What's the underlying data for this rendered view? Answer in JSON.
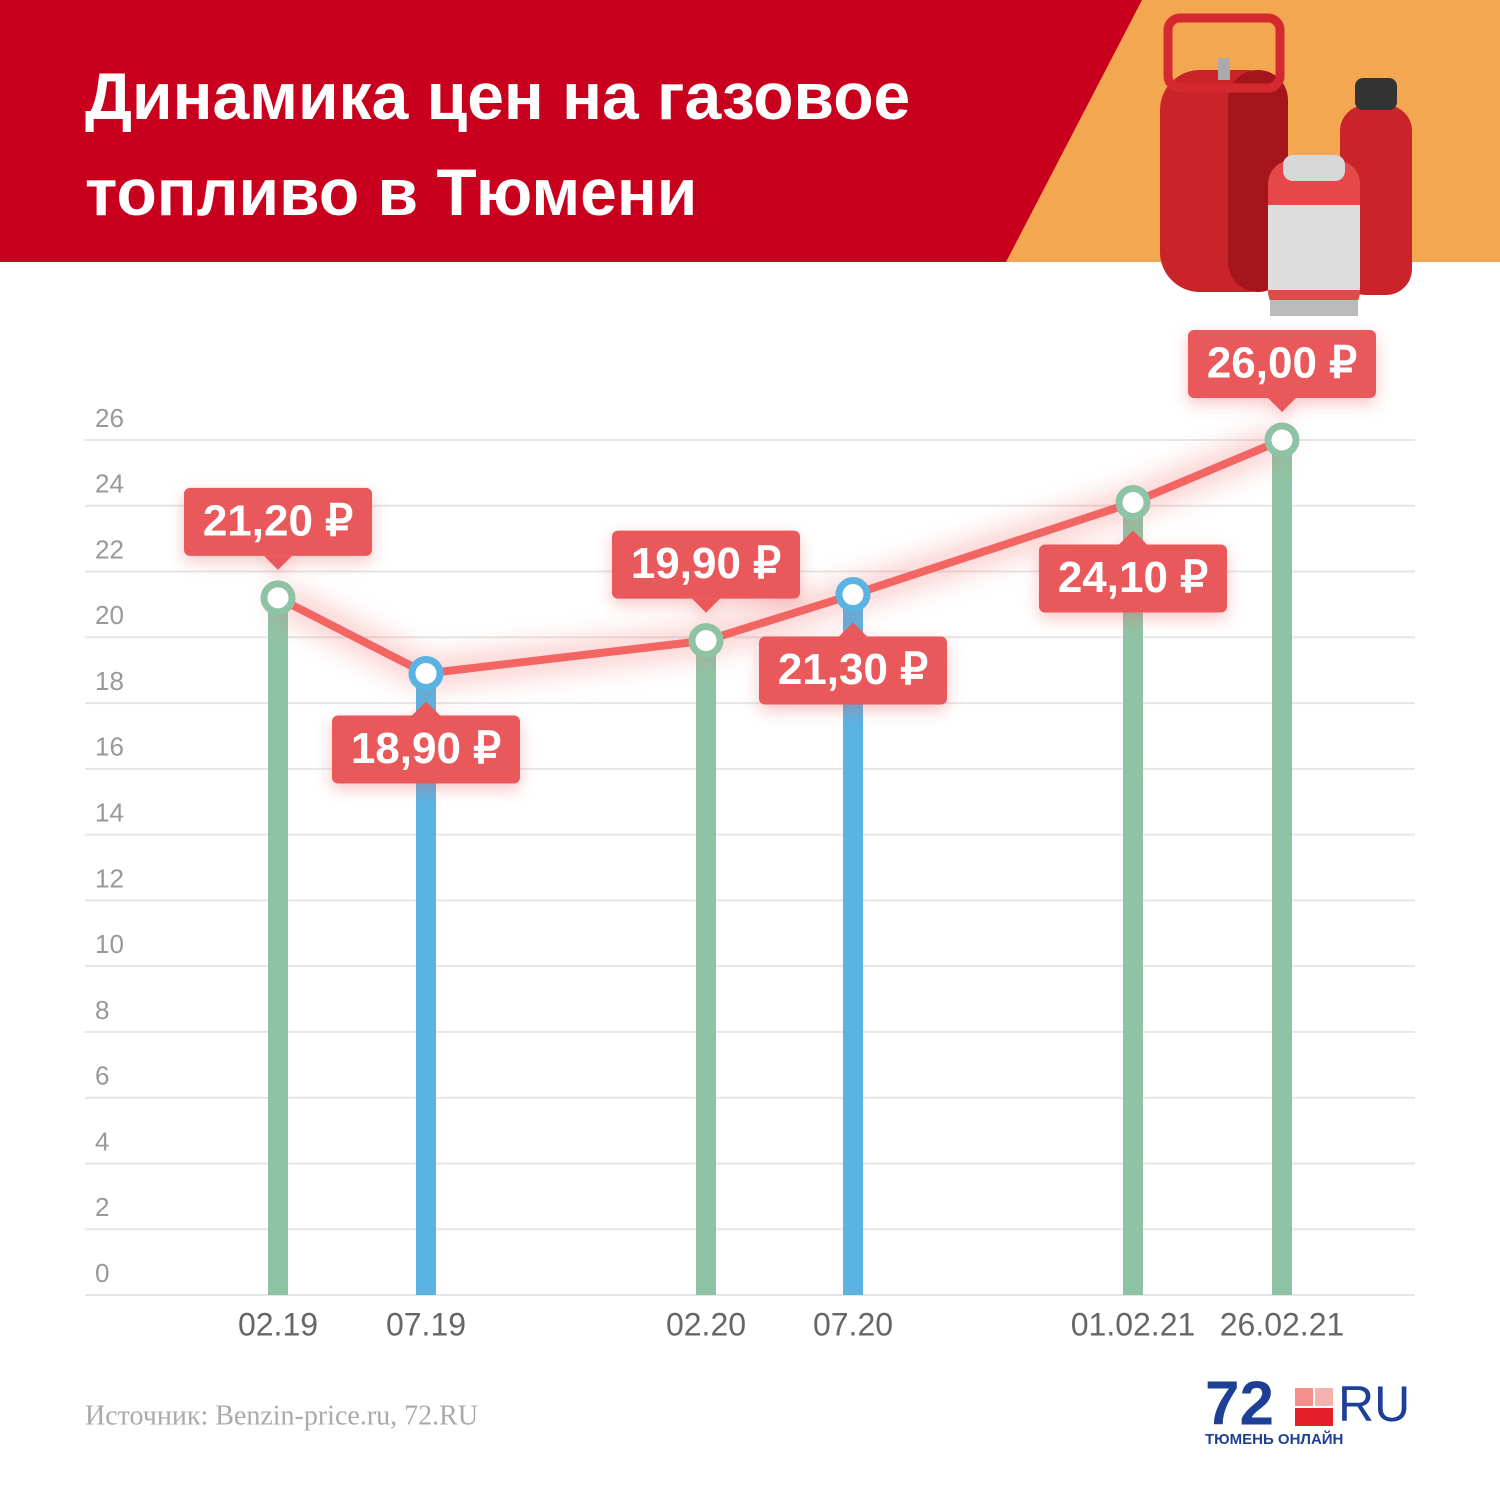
{
  "chart_data": {
    "type": "bar",
    "title": "Динамика цен на газовое топливо в Тюмени",
    "categories": [
      "02.19",
      "07.19",
      "02.20",
      "07.20",
      "01.02.21",
      "26.02.21"
    ],
    "values": [
      21.2,
      18.9,
      19.9,
      21.3,
      24.1,
      26.0
    ],
    "value_labels": [
      "21,20 ₽",
      "18,90 ₽",
      "19,90 ₽",
      "21,30 ₽",
      "24,10 ₽",
      "26,00 ₽"
    ],
    "colors": [
      "#8fc3a5",
      "#5ab3e2",
      "#8fc3a5",
      "#5ab3e2",
      "#8fc3a5",
      "#8fc3a5"
    ],
    "line_color": "#f26563",
    "label_color": "#e9585a",
    "ylim": [
      0,
      26
    ],
    "yticks": [
      0,
      2,
      4,
      6,
      8,
      10,
      12,
      14,
      16,
      18,
      20,
      22,
      24,
      26
    ],
    "grid": true,
    "source": "Источник: Benzin-price.ru, 72.RU"
  },
  "logo": {
    "number": "72",
    "suffix": "RU",
    "tagline": "ТЮМЕНЬ ОНЛАЙН"
  }
}
